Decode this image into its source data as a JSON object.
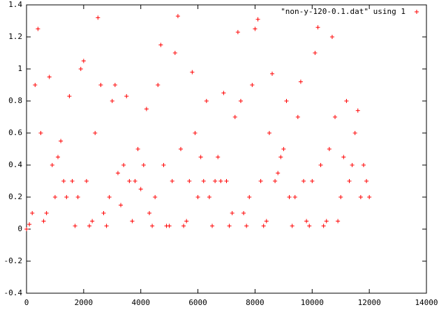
{
  "chart_data": {
    "type": "scatter",
    "series": [
      {
        "name": "\"non-y-120-0.1.dat\" using 1",
        "color": "#ff0000",
        "x": [
          0,
          100,
          200,
          300,
          400,
          500,
          600,
          700,
          800,
          900,
          1000,
          1100,
          1200,
          1300,
          1400,
          1500,
          1600,
          1700,
          1800,
          1900,
          2000,
          2100,
          2200,
          2300,
          2400,
          2500,
          2600,
          2700,
          2800,
          2900,
          3000,
          3100,
          3200,
          3300,
          3400,
          3500,
          3600,
          3700,
          3800,
          3900,
          4000,
          4100,
          4200,
          4300,
          4400,
          4500,
          4600,
          4700,
          4800,
          4900,
          5000,
          5100,
          5200,
          5300,
          5400,
          5500,
          5600,
          5700,
          5800,
          5900,
          6000,
          6100,
          6200,
          6300,
          6400,
          6500,
          6600,
          6700,
          6800,
          6900,
          7000,
          7100,
          7200,
          7300,
          7400,
          7500,
          7600,
          7700,
          7800,
          7900,
          8000,
          8100,
          8200,
          8300,
          8400,
          8500,
          8600,
          8700,
          8800,
          8900,
          9000,
          9100,
          9200,
          9300,
          9400,
          9500,
          9600,
          9700,
          9800,
          9900,
          10000,
          10100,
          10200,
          10300,
          10400,
          10500,
          10600,
          10700,
          10800,
          10900,
          11000,
          11100,
          11200,
          11300,
          11400,
          11500,
          11600,
          11700,
          11800,
          11900,
          12000
        ],
        "values": [
          0.0,
          0.03,
          0.1,
          0.9,
          1.25,
          0.6,
          0.05,
          0.1,
          0.95,
          0.4,
          0.2,
          0.45,
          0.55,
          0.3,
          0.2,
          0.83,
          0.3,
          0.02,
          0.2,
          1.0,
          1.05,
          0.3,
          0.02,
          0.05,
          0.6,
          1.32,
          0.9,
          0.1,
          0.02,
          0.2,
          0.8,
          0.9,
          0.35,
          0.15,
          0.4,
          0.83,
          0.3,
          0.05,
          0.3,
          0.5,
          0.25,
          0.4,
          0.75,
          0.1,
          0.02,
          0.2,
          0.9,
          1.15,
          0.4,
          0.02,
          0.02,
          0.3,
          1.1,
          1.33,
          0.5,
          0.02,
          0.05,
          0.3,
          0.98,
          0.6,
          0.2,
          0.45,
          0.3,
          0.8,
          0.2,
          0.02,
          0.3,
          0.45,
          0.3,
          0.85,
          0.3,
          0.02,
          0.1,
          0.7,
          1.23,
          0.8,
          0.1,
          0.02,
          0.2,
          0.9,
          1.25,
          1.31,
          0.3,
          0.02,
          0.05,
          0.6,
          0.97,
          0.3,
          0.35,
          0.45,
          0.5,
          0.8,
          0.2,
          0.02,
          0.2,
          0.7,
          0.92,
          0.3,
          0.05,
          0.02,
          0.3,
          1.1,
          1.26,
          0.4,
          0.02,
          0.05,
          0.5,
          1.2,
          0.7,
          0.05,
          0.2,
          0.45,
          0.8,
          0.3,
          0.4,
          0.6,
          0.74,
          0.2,
          0.4,
          0.3,
          0.2
        ]
      }
    ],
    "xlim": [
      0,
      14000
    ],
    "xticks": [
      0,
      2000,
      4000,
      6000,
      8000,
      10000,
      12000,
      14000
    ],
    "ylim": [
      -0.4,
      1.4
    ],
    "yticks": [
      -0.4,
      -0.2,
      0,
      0.2,
      0.4,
      0.6,
      0.8,
      1,
      1.2,
      1.4
    ],
    "grid": false,
    "legend": "top-right"
  }
}
